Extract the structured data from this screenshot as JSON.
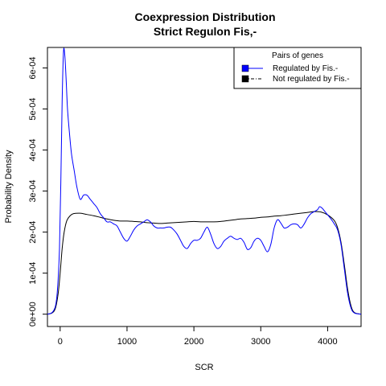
{
  "chart_data": {
    "type": "line",
    "title": "Coexpression Distribution",
    "subtitle": "Strict Regulon Fis,-",
    "xlabel": "SCR",
    "ylabel": "Probability Density",
    "xlim": [
      -190,
      4500
    ],
    "ylim": [
      -3e-05,
      0.00065
    ],
    "x_ticks": [
      0,
      1000,
      2000,
      3000,
      4000
    ],
    "x_tick_labels": [
      "0",
      "1000",
      "2000",
      "3000",
      "4000"
    ],
    "y_ticks": [
      0,
      0.0001,
      0.0002,
      0.0003,
      0.0004,
      0.0005,
      0.0006
    ],
    "y_tick_labels": [
      "0e+00",
      "1e-04",
      "2e-04",
      "3e-04",
      "4e-04",
      "5e-04",
      "6e-04"
    ],
    "grid": false,
    "legend": {
      "title": "Pairs of genes",
      "position": "top-right",
      "entries": [
        {
          "label": "Regulated by  Fis.-",
          "color": "#0000ff"
        },
        {
          "label": "Not regulated by  Fis.-",
          "color": "#000000"
        }
      ]
    },
    "series": [
      {
        "name": "Regulated by  Fis.-",
        "color": "#0000ff",
        "points": [
          [
            -190,
            0.0
          ],
          [
            -120,
            4e-06
          ],
          [
            -70,
            2e-05
          ],
          [
            -40,
            6e-05
          ],
          [
            -10,
            0.00016
          ],
          [
            10,
            0.00032
          ],
          [
            30,
            0.00052
          ],
          [
            50,
            0.00064
          ],
          [
            70,
            0.00063
          ],
          [
            90,
            0.00057
          ],
          [
            110,
            0.0005
          ],
          [
            140,
            0.00044
          ],
          [
            170,
            0.00039
          ],
          [
            210,
            0.00035
          ],
          [
            250,
            0.00031
          ],
          [
            300,
            0.00028
          ],
          [
            350,
            0.00029
          ],
          [
            400,
            0.00029
          ],
          [
            450,
            0.00028
          ],
          [
            500,
            0.00027
          ],
          [
            550,
            0.00026
          ],
          [
            600,
            0.000245
          ],
          [
            650,
            0.000235
          ],
          [
            700,
            0.000225
          ],
          [
            750,
            0.000225
          ],
          [
            800,
            0.00022
          ],
          [
            850,
            0.000215
          ],
          [
            900,
            0.0002
          ],
          [
            950,
            0.000185
          ],
          [
            1000,
            0.000178
          ],
          [
            1050,
            0.00019
          ],
          [
            1100,
            0.000205
          ],
          [
            1150,
            0.000215
          ],
          [
            1200,
            0.00022
          ],
          [
            1250,
            0.000225
          ],
          [
            1300,
            0.00023
          ],
          [
            1350,
            0.000225
          ],
          [
            1400,
            0.000215
          ],
          [
            1450,
            0.00021
          ],
          [
            1500,
            0.00021
          ],
          [
            1550,
            0.00021
          ],
          [
            1600,
            0.000212
          ],
          [
            1650,
            0.000212
          ],
          [
            1700,
            0.000205
          ],
          [
            1750,
            0.000195
          ],
          [
            1800,
            0.00018
          ],
          [
            1850,
            0.000165
          ],
          [
            1900,
            0.00016
          ],
          [
            1950,
            0.000172
          ],
          [
            2000,
            0.00018
          ],
          [
            2050,
            0.00018
          ],
          [
            2100,
            0.000185
          ],
          [
            2150,
            0.0002
          ],
          [
            2200,
            0.000212
          ],
          [
            2250,
            0.000195
          ],
          [
            2300,
            0.000172
          ],
          [
            2350,
            0.00016
          ],
          [
            2400,
            0.000165
          ],
          [
            2450,
            0.000178
          ],
          [
            2500,
            0.000185
          ],
          [
            2550,
            0.00019
          ],
          [
            2600,
            0.000185
          ],
          [
            2650,
            0.000182
          ],
          [
            2700,
            0.000185
          ],
          [
            2750,
            0.000175
          ],
          [
            2800,
            0.000158
          ],
          [
            2850,
            0.000162
          ],
          [
            2900,
            0.000178
          ],
          [
            2950,
            0.000185
          ],
          [
            3000,
            0.00018
          ],
          [
            3050,
            0.000165
          ],
          [
            3100,
            0.000152
          ],
          [
            3150,
            0.00017
          ],
          [
            3200,
            0.00021
          ],
          [
            3250,
            0.00023
          ],
          [
            3300,
            0.000222
          ],
          [
            3350,
            0.00021
          ],
          [
            3400,
            0.000212
          ],
          [
            3450,
            0.000218
          ],
          [
            3500,
            0.00022
          ],
          [
            3550,
            0.000218
          ],
          [
            3600,
            0.00021
          ],
          [
            3650,
            0.00022
          ],
          [
            3700,
            0.000235
          ],
          [
            3750,
            0.000245
          ],
          [
            3800,
            0.00025
          ],
          [
            3850,
            0.000255
          ],
          [
            3880,
            0.000262
          ],
          [
            3920,
            0.000258
          ],
          [
            3960,
            0.00025
          ],
          [
            4000,
            0.000242
          ],
          [
            4050,
            0.000232
          ],
          [
            4100,
            0.00022
          ],
          [
            4150,
            0.000205
          ],
          [
            4200,
            0.00017
          ],
          [
            4250,
            0.00011
          ],
          [
            4300,
            5e-05
          ],
          [
            4350,
            1.5e-05
          ],
          [
            4400,
            3e-06
          ],
          [
            4500,
            0.0
          ]
        ]
      },
      {
        "name": "Not regulated by  Fis.-",
        "color": "#000000",
        "points": [
          [
            -190,
            0.0
          ],
          [
            -120,
            3e-06
          ],
          [
            -70,
            1.5e-05
          ],
          [
            -30,
            5e-05
          ],
          [
            0,
            0.0001
          ],
          [
            30,
            0.00016
          ],
          [
            60,
            0.0002
          ],
          [
            100,
            0.000228
          ],
          [
            150,
            0.00024
          ],
          [
            200,
            0.000245
          ],
          [
            300,
            0.000246
          ],
          [
            400,
            0.000243
          ],
          [
            500,
            0.00024
          ],
          [
            600,
            0.000236
          ],
          [
            700,
            0.000232
          ],
          [
            800,
            0.000229
          ],
          [
            900,
            0.000227
          ],
          [
            1000,
            0.000227
          ],
          [
            1100,
            0.000226
          ],
          [
            1200,
            0.000225
          ],
          [
            1300,
            0.000223
          ],
          [
            1400,
            0.000222
          ],
          [
            1500,
            0.000221
          ],
          [
            1600,
            0.000222
          ],
          [
            1700,
            0.000223
          ],
          [
            1800,
            0.000224
          ],
          [
            1900,
            0.000225
          ],
          [
            2000,
            0.000226
          ],
          [
            2100,
            0.000225
          ],
          [
            2200,
            0.000225
          ],
          [
            2300,
            0.000225
          ],
          [
            2400,
            0.000226
          ],
          [
            2500,
            0.000228
          ],
          [
            2600,
            0.00023
          ],
          [
            2700,
            0.000232
          ],
          [
            2800,
            0.000233
          ],
          [
            2900,
            0.000234
          ],
          [
            3000,
            0.000236
          ],
          [
            3100,
            0.000237
          ],
          [
            3200,
            0.000239
          ],
          [
            3300,
            0.00024
          ],
          [
            3400,
            0.000242
          ],
          [
            3500,
            0.000244
          ],
          [
            3600,
            0.000246
          ],
          [
            3700,
            0.000248
          ],
          [
            3800,
            0.00025
          ],
          [
            3900,
            0.000249
          ],
          [
            4000,
            0.000242
          ],
          [
            4100,
            0.000228
          ],
          [
            4150,
            0.00021
          ],
          [
            4200,
            0.000175
          ],
          [
            4250,
            0.00012
          ],
          [
            4300,
            6e-05
          ],
          [
            4350,
            2e-05
          ],
          [
            4400,
            4e-06
          ],
          [
            4500,
            0.0
          ]
        ]
      }
    ]
  }
}
